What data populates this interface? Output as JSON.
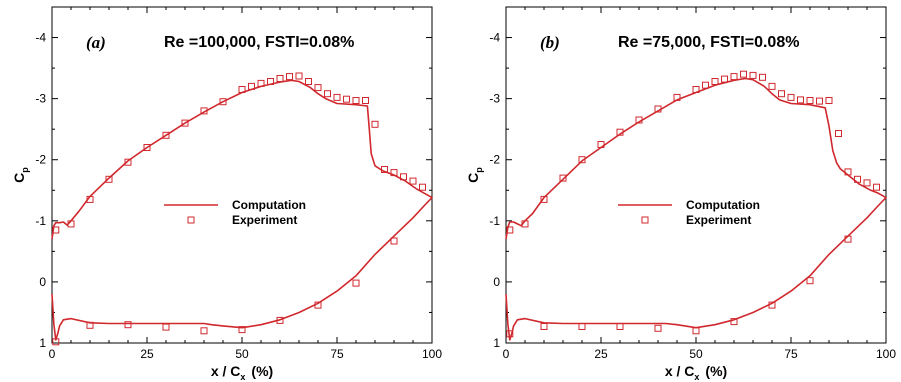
{
  "chart_data": [
    {
      "type": "line",
      "panel_label": "(a)",
      "title": "Re =100,000, FSTI=0.08%",
      "xlabel": "x / C",
      "xlabel_sub": "x",
      "xlabel_unit": "(%)",
      "ylabel": "C",
      "ylabel_sub": "p",
      "xlim": [
        0,
        100
      ],
      "ylim": [
        1.0,
        -4.5
      ],
      "y_inverted": true,
      "x_ticks": [
        0,
        25,
        50,
        75,
        100
      ],
      "x_tick_labels": [
        "0",
        "25",
        "50",
        "75",
        "100"
      ],
      "y_ticks": [
        -4,
        -3,
        -2,
        -1,
        0,
        1
      ],
      "y_tick_labels": [
        "-4",
        "-3",
        "-2",
        "-1",
        "0",
        "1"
      ],
      "legend_position": "center-right",
      "series": [
        {
          "name": "Computation",
          "marker": "line",
          "color": "#d0282d",
          "x": [
            0,
            0.5,
            1,
            2,
            3,
            4,
            5,
            7,
            10,
            15,
            20,
            25,
            30,
            35,
            40,
            45,
            50,
            55,
            60,
            63,
            65,
            68,
            70,
            72,
            75,
            80,
            83,
            83.5,
            84,
            85,
            87,
            90,
            93,
            96,
            98,
            100,
            98,
            95,
            90,
            85,
            80,
            75,
            70,
            65,
            60,
            55,
            50,
            45,
            42,
            40,
            35,
            30,
            25,
            20,
            15,
            10,
            5,
            3,
            2,
            1.5,
            1,
            0.5,
            0
          ],
          "y": [
            -0.7,
            -0.92,
            -0.97,
            -0.97,
            -0.98,
            -0.93,
            -1.0,
            -1.15,
            -1.4,
            -1.7,
            -1.98,
            -2.2,
            -2.4,
            -2.6,
            -2.78,
            -2.95,
            -3.1,
            -3.2,
            -3.27,
            -3.3,
            -3.28,
            -3.18,
            -3.08,
            -3.0,
            -2.92,
            -2.9,
            -2.88,
            -2.5,
            -2.1,
            -1.9,
            -1.82,
            -1.75,
            -1.65,
            -1.52,
            -1.45,
            -1.38,
            -1.25,
            -1.05,
            -0.75,
            -0.45,
            -0.1,
            0.15,
            0.35,
            0.5,
            0.62,
            0.7,
            0.75,
            0.72,
            0.7,
            0.68,
            0.68,
            0.68,
            0.68,
            0.68,
            0.68,
            0.67,
            0.6,
            0.62,
            0.72,
            0.85,
            0.95,
            0.7,
            0.2
          ]
        },
        {
          "name": "Experiment",
          "marker": "square",
          "color": "#d0282d",
          "x": [
            1,
            5,
            10,
            15,
            20,
            25,
            30,
            35,
            40,
            45,
            50,
            52.5,
            55,
            57.5,
            60,
            62.5,
            65,
            67.5,
            70,
            72.5,
            75,
            77.5,
            80,
            82.5,
            85,
            87.5,
            90,
            92.5,
            95,
            97.5,
            90,
            80,
            70,
            60,
            50,
            40,
            30,
            20,
            10,
            1
          ],
          "y": [
            -0.85,
            -0.95,
            -1.35,
            -1.68,
            -1.96,
            -2.2,
            -2.4,
            -2.6,
            -2.8,
            -2.95,
            -3.15,
            -3.2,
            -3.25,
            -3.28,
            -3.33,
            -3.36,
            -3.37,
            -3.28,
            -3.18,
            -3.08,
            -3.02,
            -2.99,
            -2.97,
            -2.97,
            -2.58,
            -1.84,
            -1.79,
            -1.72,
            -1.65,
            -1.55,
            -0.67,
            0.02,
            0.38,
            0.63,
            0.78,
            0.8,
            0.74,
            0.7,
            0.71,
            0.98
          ]
        }
      ]
    },
    {
      "type": "line",
      "panel_label": "(b)",
      "title": "Re =75,000, FSTI=0.08%",
      "xlabel": "x / C",
      "xlabel_sub": "x",
      "xlabel_unit": "(%)",
      "ylabel": "C",
      "ylabel_sub": "p",
      "xlim": [
        0,
        100
      ],
      "ylim": [
        1.0,
        -4.5
      ],
      "y_inverted": true,
      "x_ticks": [
        0,
        25,
        50,
        75,
        100
      ],
      "x_tick_labels": [
        "0",
        "25",
        "50",
        "75",
        "100"
      ],
      "y_ticks": [
        -4,
        -3,
        -2,
        -1,
        0,
        1
      ],
      "y_tick_labels": [
        "-4",
        "-3",
        "-2",
        "-1",
        "0",
        "1"
      ],
      "legend_position": "center-right",
      "series": [
        {
          "name": "Computation",
          "marker": "line",
          "color": "#d0282d",
          "x": [
            0,
            0.5,
            1,
            2,
            3,
            4,
            5,
            7,
            10,
            15,
            20,
            25,
            30,
            35,
            40,
            45,
            50,
            55,
            60,
            63,
            65,
            68,
            70,
            72,
            75,
            80,
            84,
            85,
            86,
            87,
            88,
            90,
            93,
            96,
            98,
            100,
            98,
            95,
            90,
            85,
            80,
            75,
            70,
            65,
            60,
            55,
            50,
            45,
            42,
            40,
            35,
            30,
            25,
            20,
            15,
            10,
            5,
            3,
            2,
            1.5,
            1,
            0.5,
            0
          ],
          "y": [
            -0.7,
            -0.9,
            -0.98,
            -0.98,
            -0.95,
            -0.92,
            -1.0,
            -1.12,
            -1.38,
            -1.68,
            -1.98,
            -2.2,
            -2.42,
            -2.62,
            -2.8,
            -2.98,
            -3.1,
            -3.22,
            -3.3,
            -3.33,
            -3.31,
            -3.2,
            -3.08,
            -2.98,
            -2.92,
            -2.9,
            -2.85,
            -2.55,
            -2.15,
            -1.95,
            -1.85,
            -1.75,
            -1.6,
            -1.5,
            -1.45,
            -1.38,
            -1.25,
            -1.05,
            -0.75,
            -0.45,
            -0.1,
            0.15,
            0.35,
            0.5,
            0.62,
            0.7,
            0.75,
            0.7,
            0.68,
            0.68,
            0.68,
            0.68,
            0.68,
            0.68,
            0.68,
            0.67,
            0.6,
            0.62,
            0.72,
            0.85,
            0.95,
            0.7,
            0.2
          ]
        },
        {
          "name": "Experiment",
          "marker": "square",
          "color": "#d0282d",
          "x": [
            1,
            5,
            10,
            15,
            20,
            25,
            30,
            35,
            40,
            45,
            50,
            52.5,
            55,
            57.5,
            60,
            62.5,
            65,
            67.5,
            70,
            72.5,
            75,
            77.5,
            80,
            82.5,
            85,
            87.5,
            90,
            92.5,
            95,
            97.5,
            90,
            80,
            70,
            60,
            50,
            40,
            30,
            20,
            10,
            1
          ],
          "y": [
            -0.85,
            -0.95,
            -1.35,
            -1.7,
            -2.0,
            -2.25,
            -2.45,
            -2.65,
            -2.83,
            -3.02,
            -3.15,
            -3.22,
            -3.28,
            -3.32,
            -3.36,
            -3.4,
            -3.38,
            -3.35,
            -3.2,
            -3.08,
            -3.02,
            -2.98,
            -2.97,
            -2.96,
            -2.97,
            -2.43,
            -1.8,
            -1.68,
            -1.62,
            -1.55,
            -0.7,
            -0.02,
            0.38,
            0.65,
            0.8,
            0.76,
            0.73,
            0.73,
            0.73,
            0.85
          ]
        }
      ]
    }
  ]
}
